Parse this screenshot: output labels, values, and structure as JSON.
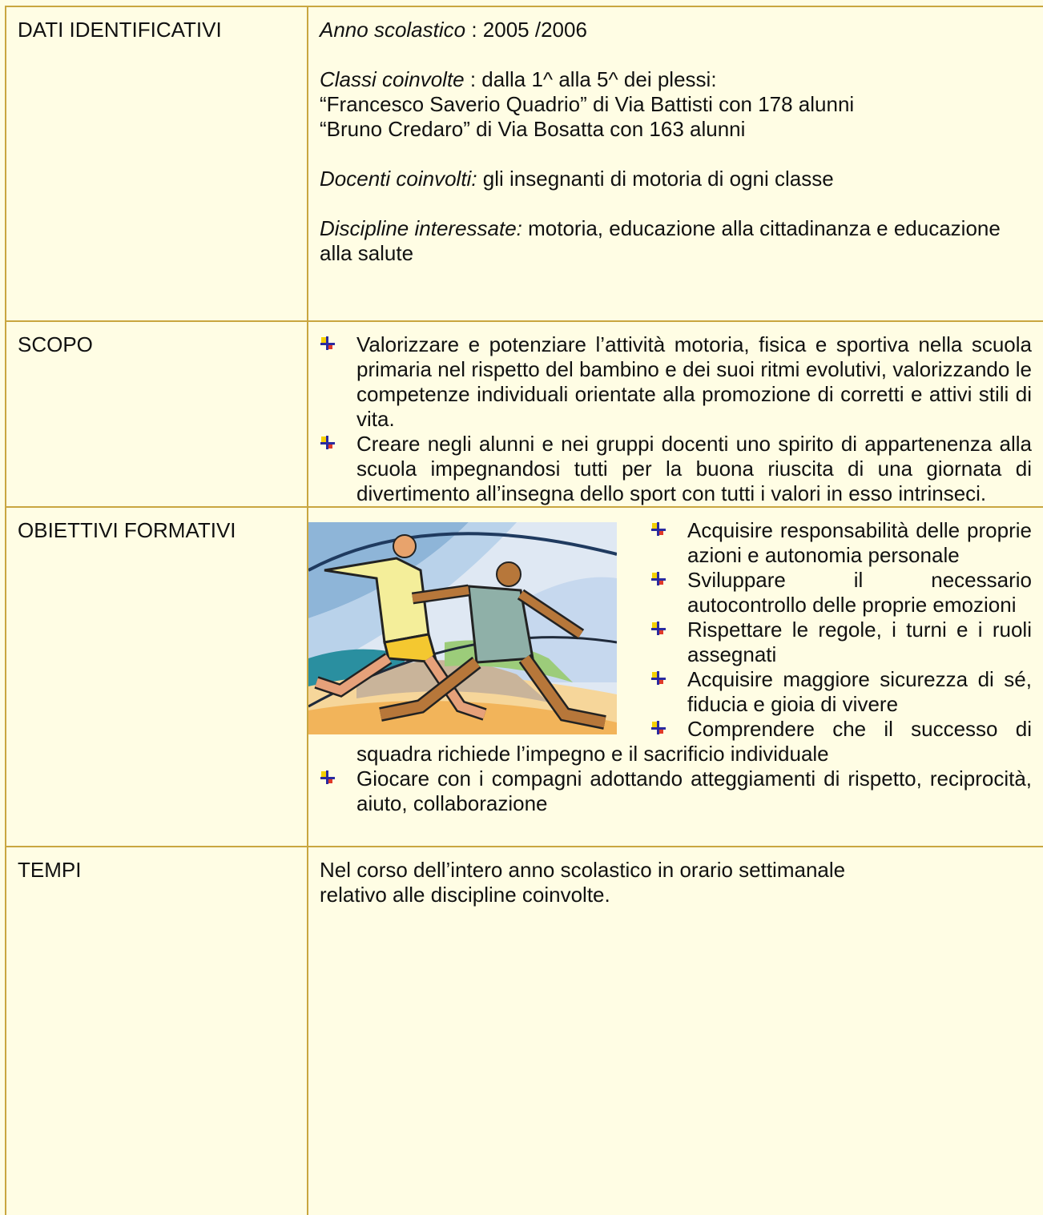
{
  "table": {
    "rows": [
      {
        "label": "DATI IDENTIFICATIVI",
        "paragraphs": [
          {
            "term": "Anno scolastico",
            "text": " : 2005 /2006"
          },
          {
            "term": "Classi coinvolte",
            "text": " : dalla 1^ alla 5^ dei plessi:",
            "lines": [
              "“Francesco Saverio Quadrio” di Via Battisti con 178 alunni",
              "“Bruno Credaro”  di Via Bosatta con 163 alunni"
            ]
          },
          {
            "term": "Docenti coinvolti:",
            "text": " gli insegnanti di motoria di ogni classe"
          },
          {
            "term": "Discipline interessate:",
            "text": " motoria, educazione alla cittadinanza e educazione alla salute"
          }
        ]
      },
      {
        "label": "SCOPO",
        "bullets": [
          "Valorizzare e potenziare l’attività motoria, fisica e sportiva nella scuola primaria nel rispetto del bambino e dei suoi ritmi evolutivi, valorizzando le competenze individuali orientate alla promozione di corretti e attivi stili di vita.",
          "Creare negli alunni e nei gruppi docenti uno spirito di appartenenza alla scuola impegnandosi tutti per la buona riuscita di una giornata di divertimento all’insegna dello sport con tutti i valori in esso intrinseci."
        ]
      },
      {
        "label": "OBIETTIVI FORMATIVI",
        "bullets": [
          "Acquisire responsabilità delle proprie azioni e autonomia personale",
          "Sviluppare il necessario autocontrollo delle proprie emozioni",
          "Rispettare le regole, i turni e i ruoli assegnati",
          "Acquisire maggiore sicurezza di sé, fiducia e gioia di vivere",
          "Comprendere che il successo di squadra richiede l’impegno e il sacrificio individuale",
          "Giocare con i compagni adottando atteggiamenti di rispetto, reciprocità, aiuto, collaborazione"
        ]
      },
      {
        "label": "TEMPI",
        "lines": [
          "Nel corso dell’intero anno scolastico in orario settimanale",
          "relativo alle discipline coinvolte."
        ]
      }
    ]
  }
}
